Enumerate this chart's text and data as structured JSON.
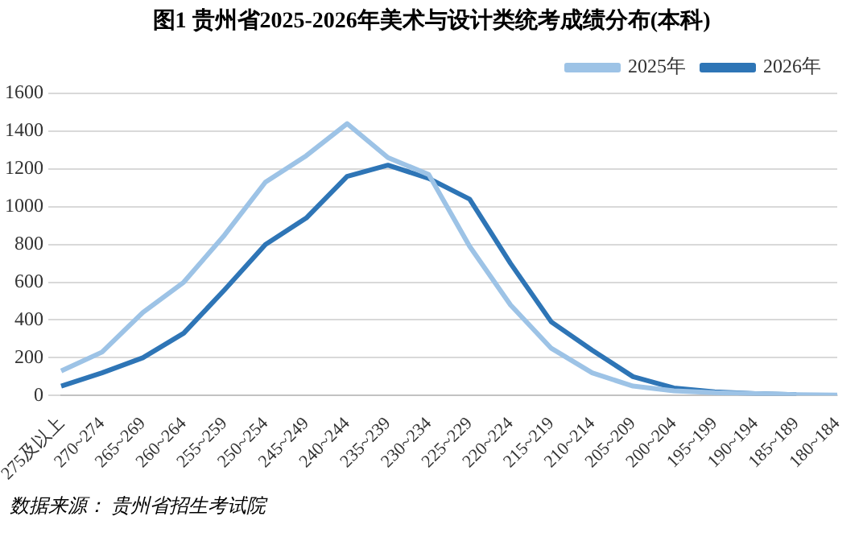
{
  "chart_data": {
    "type": "line",
    "title": "图1  贵州省2025-2026年美术与设计类统考成绩分布(本科)",
    "categories": [
      "275及以上",
      "270~274",
      "265~269",
      "260~264",
      "255~259",
      "250~254",
      "245~249",
      "240~244",
      "235~239",
      "230~234",
      "225~229",
      "220~224",
      "215~219",
      "210~214",
      "205~209",
      "200~204",
      "195~199",
      "190~194",
      "185~189",
      "180~184"
    ],
    "series": [
      {
        "name": "2025年",
        "color": "#9dc3e6",
        "values": [
          130,
          230,
          440,
          600,
          850,
          1130,
          1270,
          1440,
          1260,
          1170,
          790,
          480,
          250,
          120,
          50,
          25,
          15,
          10,
          5,
          3
        ]
      },
      {
        "name": "2026年",
        "color": "#2e75b6",
        "values": [
          50,
          120,
          200,
          330,
          560,
          800,
          940,
          1160,
          1220,
          1150,
          1040,
          700,
          390,
          240,
          100,
          40,
          20,
          10,
          5,
          null
        ]
      }
    ],
    "ylim": [
      0,
      1600
    ],
    "yticks": [
      0,
      200,
      400,
      600,
      800,
      1000,
      1200,
      1400,
      1600
    ],
    "grid": "y",
    "legend": "top right",
    "marker": "none",
    "line_style": "solid",
    "annotations": [
      "数据来源：  贵州省招生考试院"
    ]
  }
}
